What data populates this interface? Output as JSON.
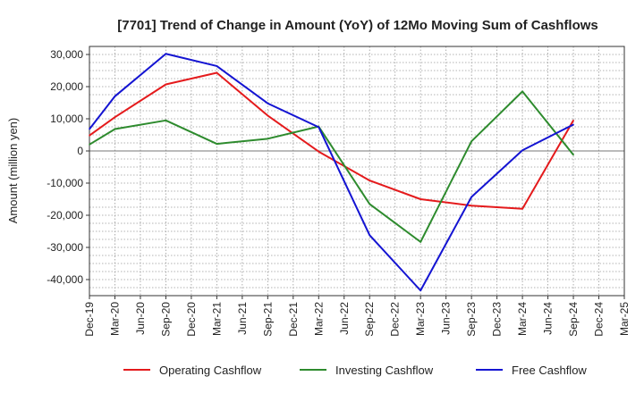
{
  "chart_data": {
    "type": "line",
    "title": "[7701]  Trend of Change in Amount (YoY) of 12Mo Moving Sum of Cashflows",
    "xlabel": "",
    "ylabel": "Amount (million yen)",
    "ylim": [
      -45000,
      32500
    ],
    "yticks": [
      30000,
      20000,
      10000,
      0,
      -10000,
      -20000,
      -30000,
      -40000
    ],
    "ytick_labels": [
      "30,000",
      "20,000",
      "10,000",
      "0",
      "-10,000",
      "-20,000",
      "-30,000",
      "-40,000"
    ],
    "categories": [
      "Dec-19",
      "Mar-20",
      "Jun-20",
      "Sep-20",
      "Dec-20",
      "Mar-21",
      "Jun-21",
      "Sep-21",
      "Dec-21",
      "Mar-22",
      "Jun-22",
      "Sep-22",
      "Dec-22",
      "Mar-23",
      "Jun-23",
      "Sep-23",
      "Dec-23",
      "Mar-24",
      "Jun-24",
      "Sep-24",
      "Dec-24",
      "Mar-25"
    ],
    "grid": true,
    "legend_position": "bottom",
    "series": [
      {
        "name": "Operating Cashflow",
        "color": "#e41a1c",
        "values": [
          4800,
          10500,
          null,
          20700,
          null,
          24300,
          null,
          11000,
          null,
          -200,
          null,
          -9200,
          null,
          -15000,
          null,
          -17000,
          null,
          -18000,
          null,
          9500,
          null,
          null
        ]
      },
      {
        "name": "Investing Cashflow",
        "color": "#2e8b2e",
        "values": [
          2000,
          6800,
          null,
          9500,
          null,
          2200,
          null,
          3800,
          null,
          7600,
          null,
          -16500,
          null,
          -28300,
          null,
          3000,
          null,
          18500,
          null,
          -1200,
          null,
          null
        ]
      },
      {
        "name": "Free Cashflow",
        "color": "#1414d2",
        "values": [
          6800,
          17000,
          null,
          30200,
          null,
          26400,
          null,
          14800,
          null,
          7400,
          null,
          -26200,
          null,
          -43400,
          null,
          -14300,
          null,
          200,
          null,
          8200,
          null,
          null
        ]
      }
    ]
  }
}
